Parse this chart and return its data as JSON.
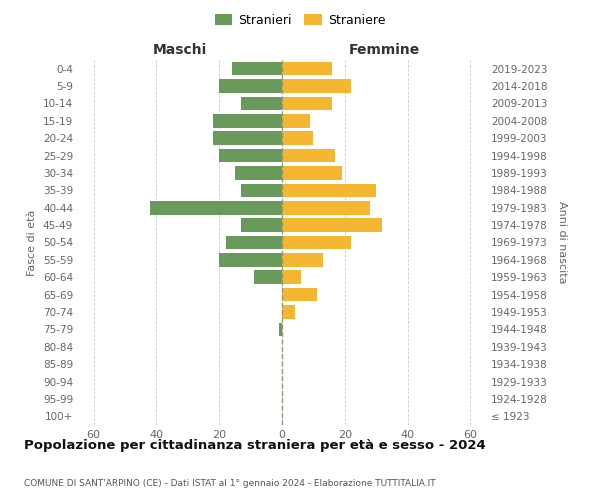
{
  "age_groups": [
    "100+",
    "95-99",
    "90-94",
    "85-89",
    "80-84",
    "75-79",
    "70-74",
    "65-69",
    "60-64",
    "55-59",
    "50-54",
    "45-49",
    "40-44",
    "35-39",
    "30-34",
    "25-29",
    "20-24",
    "15-19",
    "10-14",
    "5-9",
    "0-4"
  ],
  "birth_years": [
    "≤ 1923",
    "1924-1928",
    "1929-1933",
    "1934-1938",
    "1939-1943",
    "1944-1948",
    "1949-1953",
    "1954-1958",
    "1959-1963",
    "1964-1968",
    "1969-1973",
    "1974-1978",
    "1979-1983",
    "1984-1988",
    "1989-1993",
    "1994-1998",
    "1999-2003",
    "2004-2008",
    "2009-2013",
    "2014-2018",
    "2019-2023"
  ],
  "maschi": [
    0,
    0,
    0,
    0,
    0,
    1,
    0,
    0,
    9,
    20,
    18,
    13,
    42,
    13,
    15,
    20,
    22,
    22,
    13,
    20,
    16
  ],
  "femmine": [
    0,
    0,
    0,
    0,
    0,
    0,
    4,
    11,
    6,
    13,
    22,
    32,
    28,
    30,
    19,
    17,
    10,
    9,
    16,
    22,
    16
  ],
  "color_maschi": "#6a9a5b",
  "color_femmine": "#f5b731",
  "title": "Popolazione per cittadinanza straniera per età e sesso - 2024",
  "subtitle": "COMUNE DI SANT'ARPINO (CE) - Dati ISTAT al 1° gennaio 2024 - Elaborazione TUTTITALIA.IT",
  "xlabel_left": "Maschi",
  "xlabel_right": "Femmine",
  "ylabel_left": "Fasce di età",
  "ylabel_right": "Anni di nascita",
  "legend_maschi": "Stranieri",
  "legend_femmine": "Straniere",
  "xlim": 65,
  "background_color": "#ffffff",
  "grid_color": "#cccccc"
}
